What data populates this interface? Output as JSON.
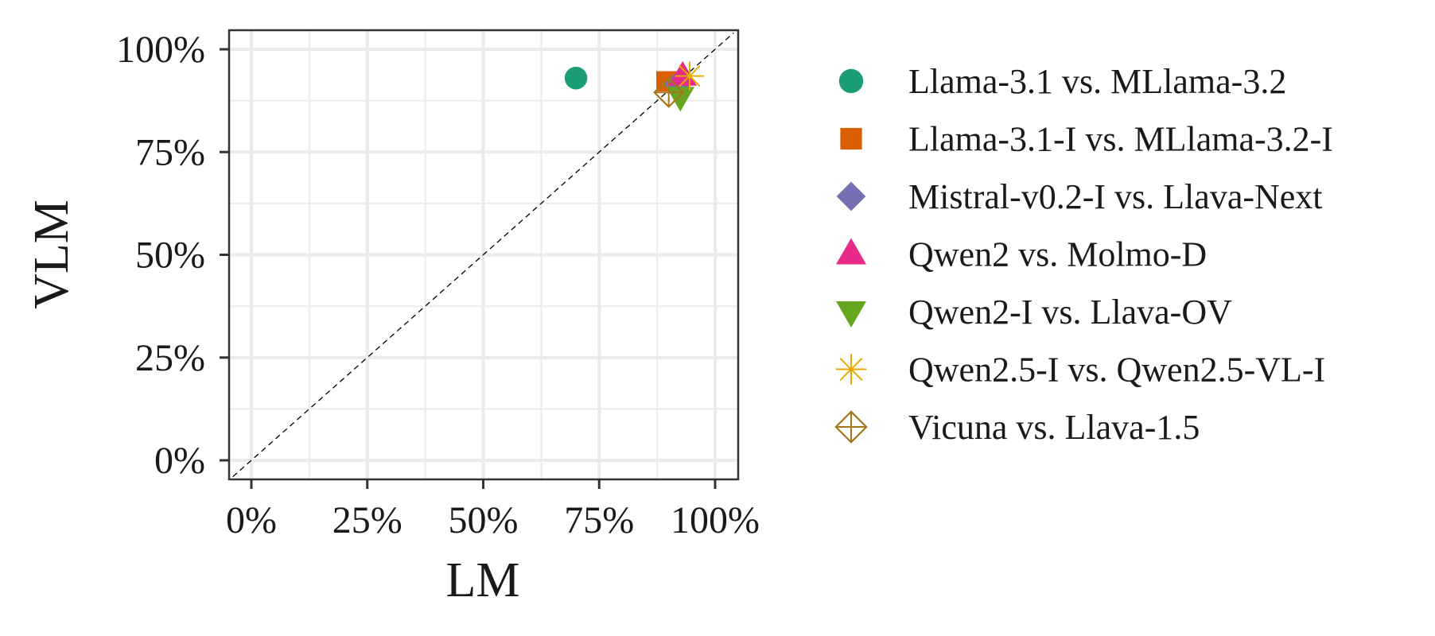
{
  "chart_data": {
    "type": "scatter",
    "title": "",
    "xlabel": "LM",
    "ylabel": "VLM",
    "xlim": [
      -0.04,
      1.04
    ],
    "ylim": [
      -0.04,
      1.04
    ],
    "x_ticks": [
      0,
      0.25,
      0.5,
      0.75,
      1.0
    ],
    "y_ticks": [
      0,
      0.25,
      0.5,
      0.75,
      1.0
    ],
    "x_tick_labels": [
      "0%",
      "25%",
      "50%",
      "75%",
      "100%"
    ],
    "y_tick_labels": [
      "0%",
      "25%",
      "50%",
      "75%",
      "100%"
    ],
    "grid": true,
    "reference_line": "y = x (dashed)",
    "legend_position": "right",
    "series": [
      {
        "name": "Llama-3.1 vs. MLlama-3.2",
        "x": 0.7,
        "y": 0.93,
        "color": "#1b9e77",
        "shape": "circle"
      },
      {
        "name": "Llama-3.1-I vs. MLlama-3.2-I",
        "x": 0.895,
        "y": 0.922,
        "color": "#d95f02",
        "shape": "square"
      },
      {
        "name": "Mistral-v0.2-I vs. Llava-Next",
        "x": 0.92,
        "y": 0.915,
        "color": "#7570b3",
        "shape": "diamond"
      },
      {
        "name": "Qwen2 vs. Molmo-D",
        "x": 0.93,
        "y": 0.935,
        "color": "#e7298a",
        "shape": "triangle-up"
      },
      {
        "name": "Qwen2-I vs. Llava-OV",
        "x": 0.925,
        "y": 0.885,
        "color": "#66a61e",
        "shape": "triangle-down"
      },
      {
        "name": "Qwen2.5-I vs. Qwen2.5-VL-I",
        "x": 0.945,
        "y": 0.935,
        "color": "#e6ab02",
        "shape": "asterisk"
      },
      {
        "name": "Vicuna vs. Llava-1.5",
        "x": 0.9,
        "y": 0.895,
        "color": "#a6761d",
        "shape": "diamond-plus"
      }
    ]
  }
}
